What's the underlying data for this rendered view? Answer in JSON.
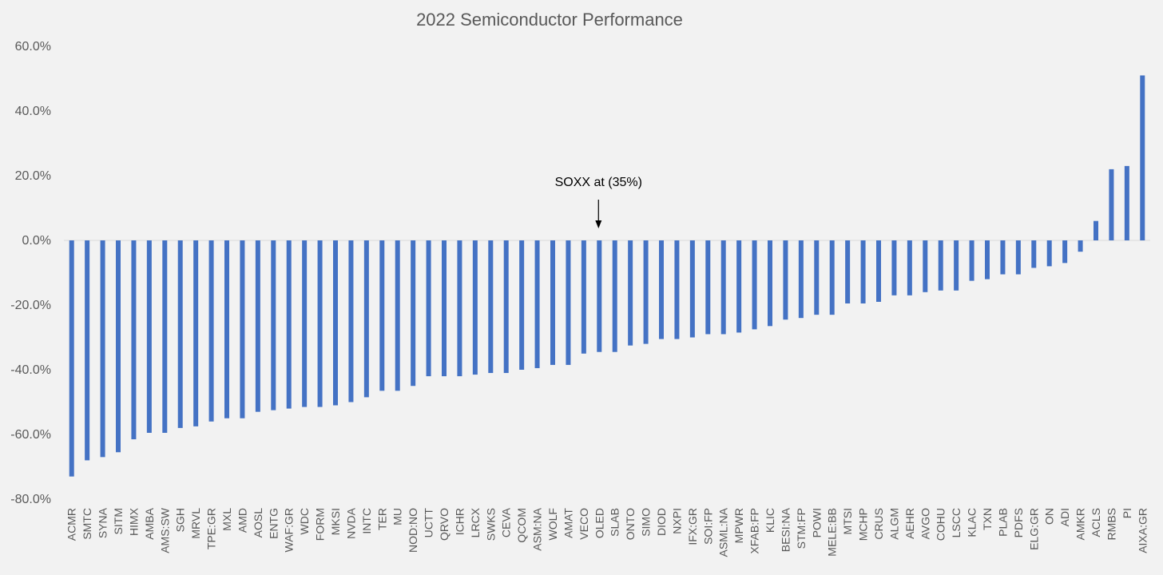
{
  "chart_data": {
    "type": "bar",
    "title": "2022 Semiconductor Performance",
    "xlabel": "",
    "ylabel": "",
    "ylim": [
      -80,
      60
    ],
    "ytick_labels": [
      "60.0%",
      "40.0%",
      "20.0%",
      "0.0%",
      "-20.0%",
      "-40.0%",
      "-60.0%",
      "-80.0%"
    ],
    "ytick_values": [
      60,
      40,
      20,
      0,
      -20,
      -40,
      -60,
      -80
    ],
    "bar_color": "#4472c4",
    "zero_line_color": "#d9d9d9",
    "grid": false,
    "annotation": {
      "text": "SOXX at (35%)",
      "target_category": "OLED"
    },
    "categories": [
      "ACMR",
      "SMTC",
      "SYNA",
      "SITM",
      "HIMX",
      "AMBA",
      "AMS:SW",
      "SGH",
      "MRVL",
      "TPE:GR",
      "MXL",
      "AMD",
      "AOSL",
      "ENTG",
      "WAF:GR",
      "WDC",
      "FORM",
      "MKSI",
      "NVDA",
      "INTC",
      "TER",
      "MU",
      "NOD:NO",
      "UCTT",
      "QRVO",
      "ICHR",
      "LRCX",
      "SWKS",
      "CEVA",
      "QCOM",
      "ASM:NA",
      "WOLF",
      "AMAT",
      "VECO",
      "OLED",
      "SLAB",
      "ONTO",
      "SIMO",
      "DIOD",
      "NXPI",
      "IFX:GR",
      "SOI:FP",
      "ASML:NA",
      "MPWR",
      "XFAB:FP",
      "KLIC",
      "BESI:NA",
      "STM:FP",
      "POWI",
      "MELE:BB",
      "MTSI",
      "MCHP",
      "CRUS",
      "ALGM",
      "AEHR",
      "AVGO",
      "COHU",
      "LSCC",
      "KLAC",
      "TXN",
      "PLAB",
      "PDFS",
      "ELG:GR",
      "ON",
      "ADI",
      "AMKR",
      "ACLS",
      "RMBS",
      "PI",
      "AIXA:GR"
    ],
    "values": [
      -73.0,
      -68.0,
      -67.0,
      -65.5,
      -61.5,
      -59.5,
      -59.5,
      -58.0,
      -57.5,
      -56.0,
      -55.0,
      -55.0,
      -53.0,
      -52.5,
      -52.0,
      -51.5,
      -51.5,
      -51.0,
      -50.0,
      -48.5,
      -46.5,
      -46.5,
      -45.0,
      -42.0,
      -42.0,
      -42.0,
      -41.5,
      -41.0,
      -41.0,
      -40.0,
      -39.5,
      -38.5,
      -38.5,
      -35.0,
      -34.5,
      -34.5,
      -32.5,
      -32.0,
      -30.5,
      -30.5,
      -30.0,
      -29.0,
      -29.0,
      -28.5,
      -27.5,
      -26.5,
      -24.5,
      -24.0,
      -23.0,
      -23.0,
      -19.5,
      -19.5,
      -19.0,
      -17.0,
      -17.0,
      -16.0,
      -15.5,
      -15.5,
      -12.5,
      -12.0,
      -10.5,
      -10.5,
      -8.5,
      -8.0,
      -7.0,
      -3.5,
      6.0,
      22.0,
      23.0,
      51.0
    ]
  }
}
